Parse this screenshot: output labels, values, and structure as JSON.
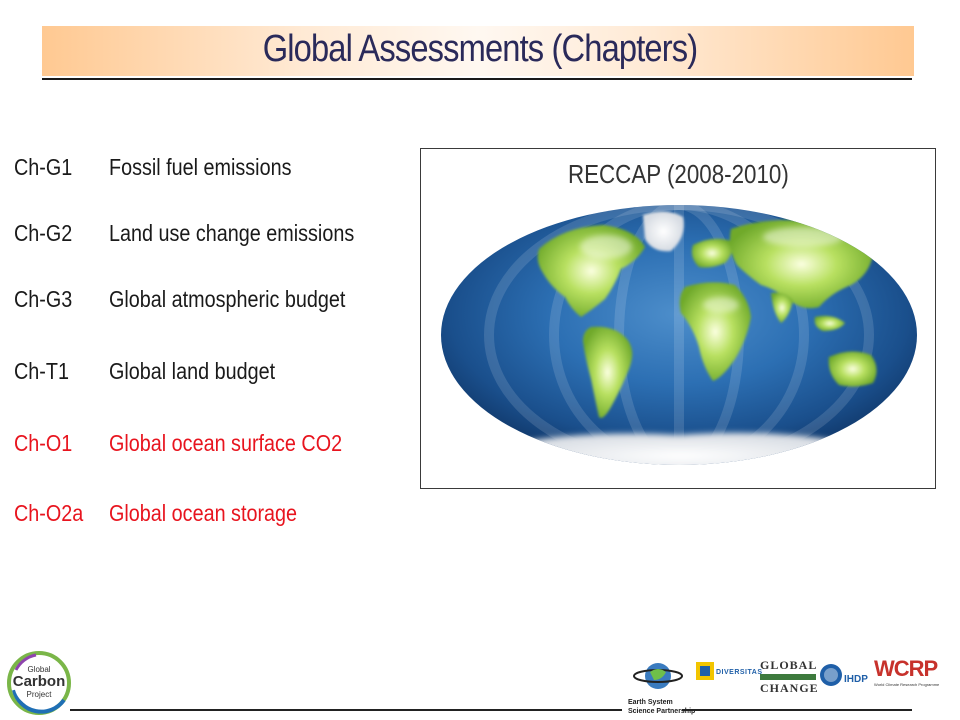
{
  "slide": {
    "title": "Global Assessments (Chapters)"
  },
  "chapters": [
    {
      "code": "Ch-G1",
      "label": "Fossil fuel emissions",
      "color": "#1a1a1a"
    },
    {
      "code": "Ch-G2",
      "label": "Land use change emissions",
      "color": "#1a1a1a"
    },
    {
      "code": "Ch-G3",
      "label": "Global atmospheric budget",
      "color": "#1a1a1a"
    },
    {
      "code": "Ch-T1",
      "label": "Global land budget",
      "color": "#1a1a1a"
    },
    {
      "code": "Ch-O1",
      "label": "Global ocean surface CO2",
      "color": "#e8141e"
    },
    {
      "code": "Ch-O2a",
      "label": "Global ocean storage",
      "color": "#e8141e"
    }
  ],
  "map_panel": {
    "title": "RECCAP (2008-2010)",
    "icon": "world-map-globe"
  },
  "footer": {
    "gcp_logo": {
      "line1": "Global",
      "line2": "Carbon",
      "line3": "Project"
    },
    "essp_logo": {
      "line1": "Earth System",
      "line2": "Science Partnership"
    },
    "diversitas_logo": {
      "text": "DIVERSITAS"
    },
    "igbp_logo": {
      "line1": "GLOBAL",
      "line2": "CHANGE"
    },
    "ihdp_logo": {
      "text": "IHDP"
    },
    "wcrp_logo": {
      "text": "WCRP",
      "subtitle": "World Climate Research Programme"
    }
  },
  "colors": {
    "title_text": "#2a2a5a",
    "highlight_red": "#e8141e",
    "ocean_blue": "#1e5a9c",
    "land_green": "#8cc63f"
  }
}
